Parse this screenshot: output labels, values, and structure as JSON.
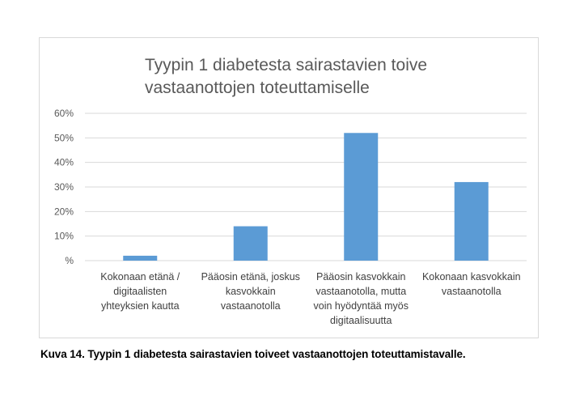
{
  "chart_data": {
    "type": "bar",
    "title_lines": [
      "Tyypin 1 diabetesta sairastavien toive",
      "vastaanottojen toteuttamiselle"
    ],
    "categories": [
      [
        "Kokonaan etänä /",
        "digitaalisten",
        "yhteyksien kautta"
      ],
      [
        "Pääosin etänä, joskus",
        "kasvokkain",
        "vastaanotolla"
      ],
      [
        "Pääosin kasvokkain",
        "vastaanotolla, mutta",
        "voin hyödyntää myös",
        "digitaalisuutta"
      ],
      [
        "Kokonaan kasvokkain",
        "vastaanotolla"
      ]
    ],
    "values": [
      2,
      14,
      52,
      32
    ],
    "ylim": [
      0,
      60
    ],
    "yticks": [
      0,
      10,
      20,
      30,
      40,
      50,
      60
    ],
    "ytick_labels": [
      "%",
      "10%",
      "20%",
      "30%",
      "40%",
      "50%",
      "60%"
    ],
    "grid": true,
    "legend": "none",
    "bar_color": "#5b9bd5",
    "xlabel": "",
    "ylabel": ""
  },
  "caption": "Kuva 14. Tyypin 1 diabetesta sairastavien toiveet vastaanottojen toteuttamistavalle."
}
